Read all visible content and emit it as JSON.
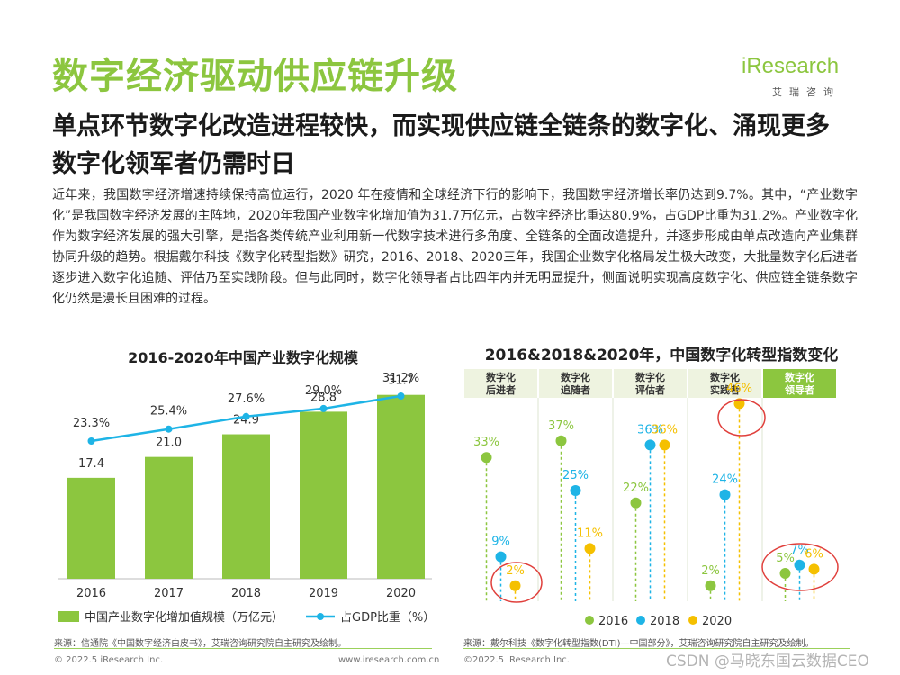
{
  "header": {
    "title": "数字经济驱动供应链升级",
    "subtitle": "单点环节数字化改造进程较快，而实现供应链全链条的数字化、涌现更多数字化领军者仍需时日",
    "body": "近年来，我国数字经济增速持续保持高位运行，2020 年在疫情和全球经济下行的影响下，我国数字经济增长率仍达到9.7%。其中，“产业数字化”是我国数字经济发展的主阵地，2020年我国产业数字化增加值为31.7万亿元，占数字经济比重达80.9%，占GDP比重为31.2%。产业数字化作为数字经济发展的强大引擎，是指各类传统产业利用新一代数字技术进行多角度、全链条的全面改造提升，并逐步形成由单点改造向产业集群协同升级的趋势。根据戴尔科技《数字化转型指数》研究，2016、2018、2020三年，我国企业数字化格局发生极大改变，大批量数字化后进者逐步进入数字化追随、评估乃至实践阶段。但与此同时，数字化领导者占比四年内并无明显提升，侧面说明实现高度数字化、供应链全链条数字化仍然是漫长且困难的过程。"
  },
  "logo": {
    "word": "iResearch",
    "sub": "艾瑞咨询"
  },
  "colors": {
    "green": "#8cc63f",
    "blue": "#1eb4e6",
    "yellow": "#f5c000",
    "header_bg": "#eef3e0",
    "highlight": "#e0403c"
  },
  "chart_data": [
    {
      "type": "bar",
      "title": "2016-2020年中国产业数字化规模",
      "categories": [
        "2016",
        "2017",
        "2018",
        "2019",
        "2020"
      ],
      "series": [
        {
          "name": "中国产业数字化增加值规模（万亿元）",
          "type": "bar",
          "values": [
            17.4,
            21.0,
            24.9,
            28.8,
            31.7
          ],
          "labels": [
            "17.4",
            "21.0",
            "24.9",
            "28.8",
            "31.7"
          ]
        },
        {
          "name": "占GDP比重（%）",
          "type": "line",
          "values": [
            23.3,
            25.4,
            27.6,
            29.0,
            31.2
          ],
          "labels": [
            "23.3%",
            "25.4%",
            "27.6%",
            "29.0%",
            "31.2%"
          ]
        }
      ],
      "ylim": [
        0,
        45
      ],
      "line_ylim": [
        5,
        40
      ],
      "legend": "bottom"
    },
    {
      "type": "scatter",
      "title": "2016&2018&2020年，中国数字化转型指数变化",
      "categories": [
        "数字化后进者",
        "数字化追随者",
        "数字化评估者",
        "数字化实践者",
        "数字化领导者"
      ],
      "series": [
        {
          "name": "2016",
          "values": [
            33,
            37,
            22,
            2,
            5
          ],
          "labels": [
            "33%",
            "37%",
            "22%",
            "2%",
            "5%"
          ]
        },
        {
          "name": "2018",
          "values": [
            9,
            25,
            36,
            24,
            7
          ],
          "labels": [
            "9%",
            "25%",
            "36%",
            "24%",
            "7%"
          ]
        },
        {
          "name": "2020",
          "values": [
            2,
            11,
            36,
            46,
            6
          ],
          "labels": [
            "2%",
            "11%",
            "36%",
            "46%",
            "6%"
          ]
        }
      ],
      "highlighted": [
        {
          "category": "数字化后进者",
          "series": "2020"
        },
        {
          "category": "数字化实践者",
          "series": "2020"
        },
        {
          "category": "数字化领导者",
          "series": "all"
        }
      ],
      "ylim": [
        0,
        50
      ],
      "legend": "bottom"
    }
  ],
  "sources": {
    "left": "来源：信通院《中国数字经济白皮书》，艾瑞咨询研究院自主研究及绘制。",
    "right": "来源：戴尔科技《数字化转型指数(DTI)—中国部分》，艾瑞咨询研究院自主研究及绘制。"
  },
  "footer": {
    "left": "© 2022.5 iResearch Inc.",
    "mid": "www.iresearch.com.cn",
    "right": "©2022.5 iResearch Inc.",
    "watermark": "CSDN @马晓东国云数据CEO"
  }
}
